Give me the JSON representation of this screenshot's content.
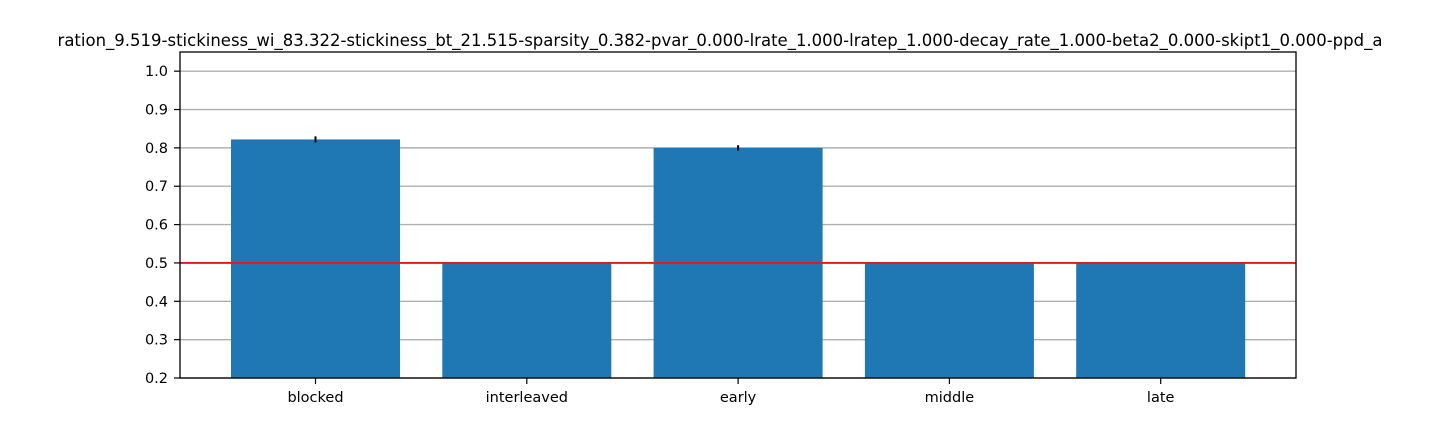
{
  "chart_data": {
    "type": "bar",
    "title": "ration_9.519-stickiness_wi_83.322-stickiness_bt_21.515-sparsity_0.382-pvar_0.000-lrate_1.000-lratep_1.000-decay_rate_1.000-beta2_0.000-skipt1_0.000-ppd_a",
    "categories": [
      "blocked",
      "interleaved",
      "early",
      "middle",
      "late"
    ],
    "values": [
      0.822,
      0.5,
      0.8,
      0.5,
      0.5
    ],
    "errors": [
      0.008,
      0.0,
      0.007,
      0.0,
      0.0
    ],
    "xlabel": "",
    "ylabel": "",
    "ylim": [
      0.2,
      1.05
    ],
    "yticks": [
      0.2,
      0.3,
      0.4,
      0.5,
      0.6,
      0.7,
      0.8,
      0.9,
      1.0
    ],
    "ytick_labels": [
      "0.2",
      "0.3",
      "0.4",
      "0.5",
      "0.6",
      "0.7",
      "0.8",
      "0.9",
      "1.0"
    ],
    "reference_line": {
      "y": 0.5,
      "color": "#e8171c"
    },
    "bar_color": "#1f77b4",
    "grid": "horizontal"
  }
}
